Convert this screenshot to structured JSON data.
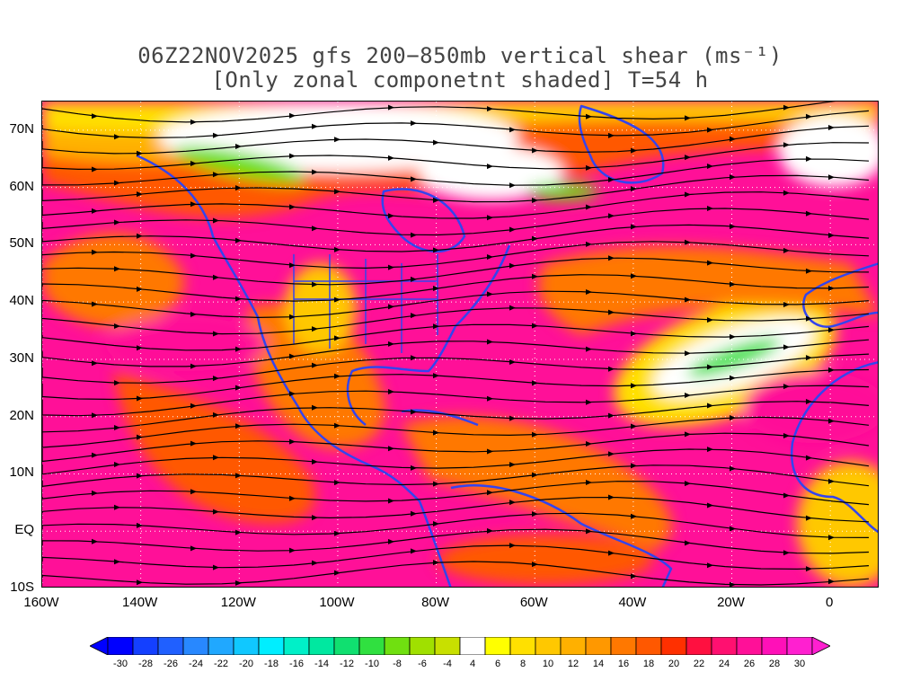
{
  "title": {
    "line1": "06Z22NOV2025 gfs 200−850mb vertical shear (ms⁻¹)",
    "line2": "[Only zonal componetnt shaded] T=54 h"
  },
  "map": {
    "lon_range": [
      -160,
      10
    ],
    "lat_range": [
      -10,
      75
    ],
    "lat_labels": [
      "70N",
      "60N",
      "50N",
      "40N",
      "30N",
      "20N",
      "10N",
      "EQ",
      "10S"
    ],
    "lat_values": [
      70,
      60,
      50,
      40,
      30,
      20,
      10,
      0,
      -10
    ],
    "lon_labels": [
      "160W",
      "140W",
      "120W",
      "100W",
      "80W",
      "60W",
      "40W",
      "20W",
      "0"
    ],
    "lon_values": [
      -160,
      -140,
      -120,
      -100,
      -80,
      -60,
      -40,
      -20,
      0
    ],
    "gridlines": "dotted",
    "coastline_color": "#3344ee",
    "streamline_color": "#000000"
  },
  "colorbar": {
    "labels": [
      "-30",
      "-28",
      "-26",
      "-24",
      "-22",
      "-20",
      "-18",
      "-16",
      "-14",
      "-12",
      "-10",
      "-8",
      "-6",
      "-4",
      "4",
      "6",
      "8",
      "10",
      "12",
      "14",
      "16",
      "18",
      "20",
      "22",
      "24",
      "26",
      "28",
      "30"
    ],
    "colors": [
      "#0000ff",
      "#1440ff",
      "#2060ff",
      "#2888ff",
      "#20a8ff",
      "#10c8ff",
      "#00eeff",
      "#00f0c8",
      "#00e8a0",
      "#10e070",
      "#30e040",
      "#70e010",
      "#a0e000",
      "#c8e000",
      "#ffffff",
      "#ffff00",
      "#ffe000",
      "#ffc800",
      "#ffb000",
      "#ff9800",
      "#ff7800",
      "#ff5800",
      "#ff3000",
      "#ff1040",
      "#ff1070",
      "#ff1098",
      "#ff10b8",
      "#ff20d0"
    ],
    "underflow_color": "#0000ff",
    "overflow_color": "#ff20d0"
  }
}
